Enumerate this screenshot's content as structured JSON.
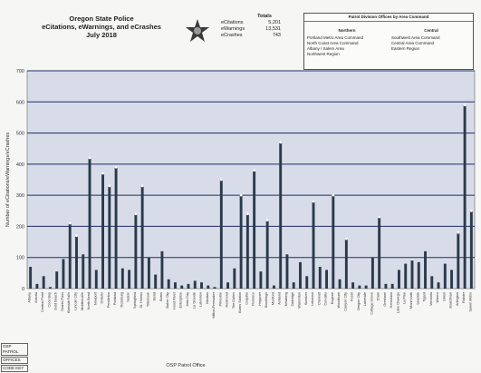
{
  "header": {
    "title_lines": [
      "Oregon State Police",
      "eCitations, eWarnings, and eCrashes",
      "July 2018"
    ]
  },
  "totals": {
    "heading": "Totals",
    "rows": [
      {
        "label": "eCitations",
        "value": "5,201"
      },
      {
        "label": "eWarnings",
        "value": "13,531"
      },
      {
        "label": "eCrashes",
        "value": "743"
      }
    ]
  },
  "legend": {
    "header": "Patrol Division Offices by Area Command",
    "columns": [
      {
        "title": "Northern",
        "items": [
          "Portland Metro Area Command",
          "North Coast Area Command",
          "Albany / Salem Area",
          "Northwest Region"
        ]
      },
      {
        "title": "Central",
        "items": [
          "Southwest Area Command",
          "Central Area Command",
          "Eastern Region"
        ]
      }
    ]
  },
  "colors": {
    "bar": "#2b3a4a",
    "grid": "#1f2d6b",
    "plot_bg": "#d8dce8"
  },
  "chart_data": {
    "type": "bar",
    "ylabel": "Number of eCitations/eWarnings/eCrashes",
    "xlabel": "OSP Patrol Office",
    "ylim": [
      0,
      700
    ],
    "yticks": [
      "700",
      "600",
      "500",
      "400",
      "300",
      "200",
      "100",
      "0"
    ],
    "categories": [
      "Albany",
      "Astoria",
      "Central Point",
      "Coos Bay",
      "Gold Beach",
      "Grants Pass",
      "Klamath Falls",
      "Lincoln City",
      "McMinnville",
      "North Bend",
      "Newport",
      "Ontario",
      "Pendleton",
      "Portland",
      "Roseburg",
      "Salem",
      "Springfield",
      "St. Helens",
      "Tillamook",
      "Bend",
      "Burns",
      "Baker City",
      "Hood River",
      "Enterprise",
      "John Day",
      "La Grande",
      "Lakeview",
      "Madras",
      "Milton-Freewater",
      "Prineville",
      "Redmond",
      "The Dalles",
      "Burns Station",
      "Coquille",
      "Florence",
      "Heppner",
      "Brookings",
      "Medford",
      "Ashland",
      "Newberg",
      "Oakridge",
      "Warrenton",
      "Sunriver",
      "Lebanon",
      "Chemult",
      "Corvallis",
      "Eugene",
      "Woodburn",
      "Canyon City",
      "Fossil",
      "Oregon City",
      "Lakeside",
      "Cottage Grove",
      "Drain",
      "Gresham",
      "Hermiston",
      "Lake Oswego",
      "La Pine",
      "Monmouth",
      "Seaside",
      "Tigard",
      "Vernonia",
      "Wasco",
      "Union",
      "Boardman",
      "Arlington",
      "Rainier",
      "Salem Metro"
    ],
    "series": [
      {
        "values": [
          70,
          15,
          40,
          5,
          55,
          95,
          210,
          170,
          110,
          420,
          60,
          370,
          330,
          390,
          65,
          60,
          240,
          330,
          100,
          45,
          120,
          30,
          20,
          10,
          15,
          25,
          20,
          10,
          5,
          350,
          20,
          65,
          300,
          240,
          380,
          55,
          220,
          10,
          470,
          110,
          20,
          85,
          40,
          280,
          70,
          60,
          300,
          30,
          160,
          20,
          10,
          10,
          100,
          230,
          15,
          15,
          60,
          80,
          90,
          85,
          120,
          40,
          20,
          80,
          60,
          180,
          590,
          250
        ]
      }
    ]
  },
  "footer": {
    "codes": [
      "OSP PATROL",
      "OFFICES",
      "CODE KEY"
    ]
  }
}
